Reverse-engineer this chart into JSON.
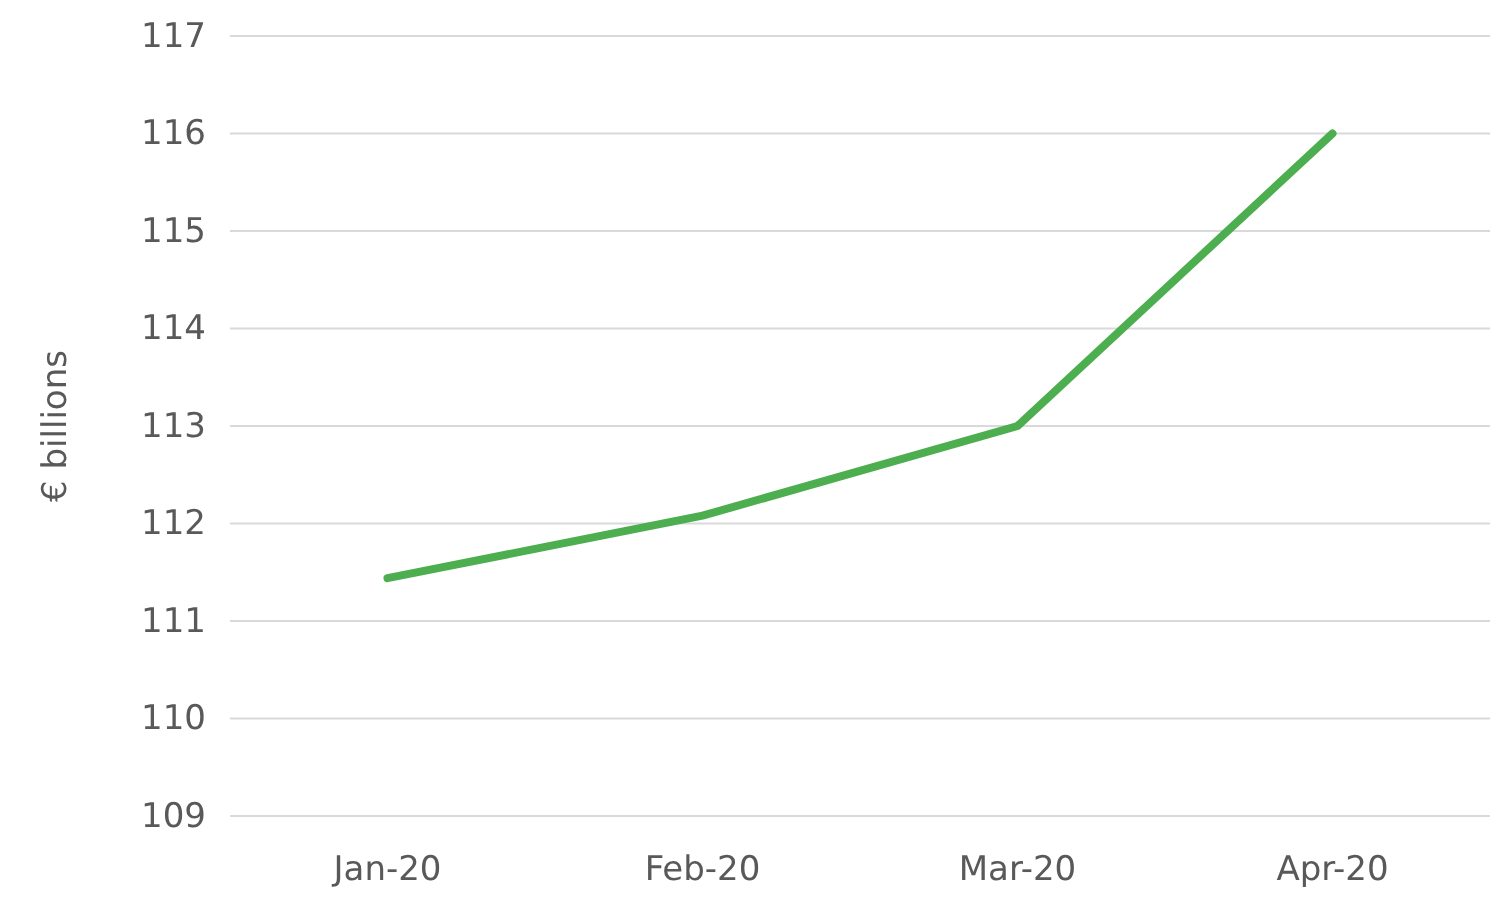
{
  "chart_data": {
    "type": "line",
    "ylabel": "€ billions",
    "categories": [
      "Jan-20",
      "Feb-20",
      "Mar-20",
      "Apr-20"
    ],
    "series": [
      {
        "color": "#4cae4f",
        "values": [
          111.44,
          112.08,
          113.0,
          116.0
        ]
      }
    ],
    "ylim": [
      109,
      117
    ],
    "yticks": [
      109,
      110,
      111,
      112,
      113,
      114,
      115,
      116,
      117
    ],
    "grid": "y",
    "marker": "none",
    "line_style": "solid"
  }
}
